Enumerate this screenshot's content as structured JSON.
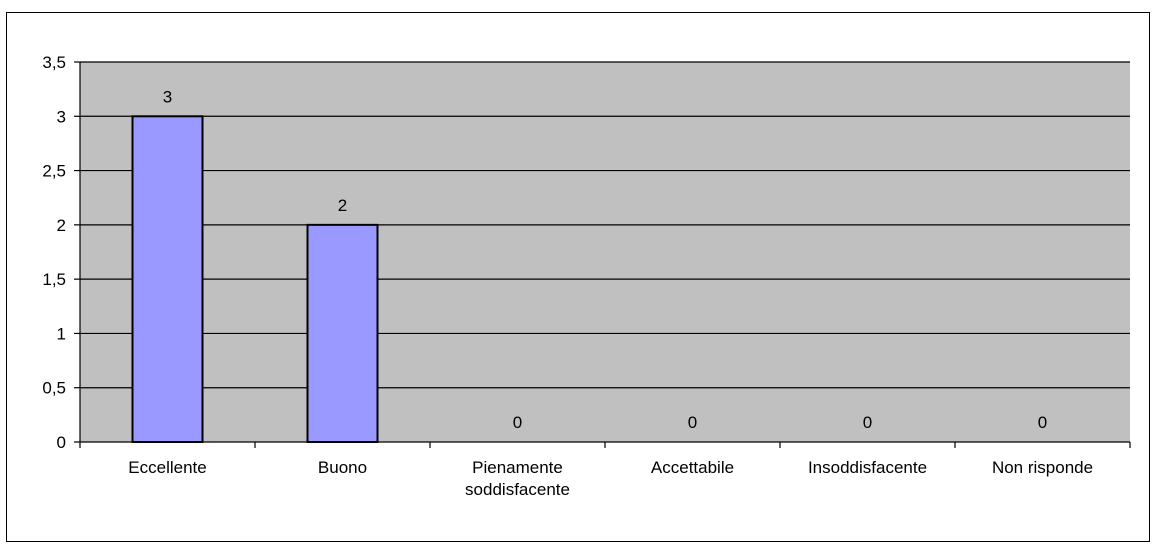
{
  "chart_data": {
    "type": "bar",
    "categories": [
      [
        "Eccellente"
      ],
      [
        "Buono"
      ],
      [
        "Pienamente",
        "soddisfacente"
      ],
      [
        "Accettabile"
      ],
      [
        "Insoddisfacente"
      ],
      [
        "Non risponde"
      ]
    ],
    "values": [
      3,
      2,
      0,
      0,
      0,
      0
    ],
    "data_labels": [
      "3",
      "2",
      "0",
      "0",
      "0",
      "0"
    ],
    "ylim": [
      0,
      3.5
    ],
    "yticks": [
      0,
      0.5,
      1,
      1.5,
      2,
      2.5,
      3,
      3.5
    ],
    "ytick_labels": [
      "0",
      "0,5",
      "1",
      "1,5",
      "2",
      "2,5",
      "3",
      "3,5"
    ],
    "grid": true,
    "legend": "none",
    "colors": {
      "plot_background": "#c0c0c0",
      "bar_fill": "#9999ff",
      "bar_stroke": "#000000",
      "gridline": "#000000"
    }
  }
}
